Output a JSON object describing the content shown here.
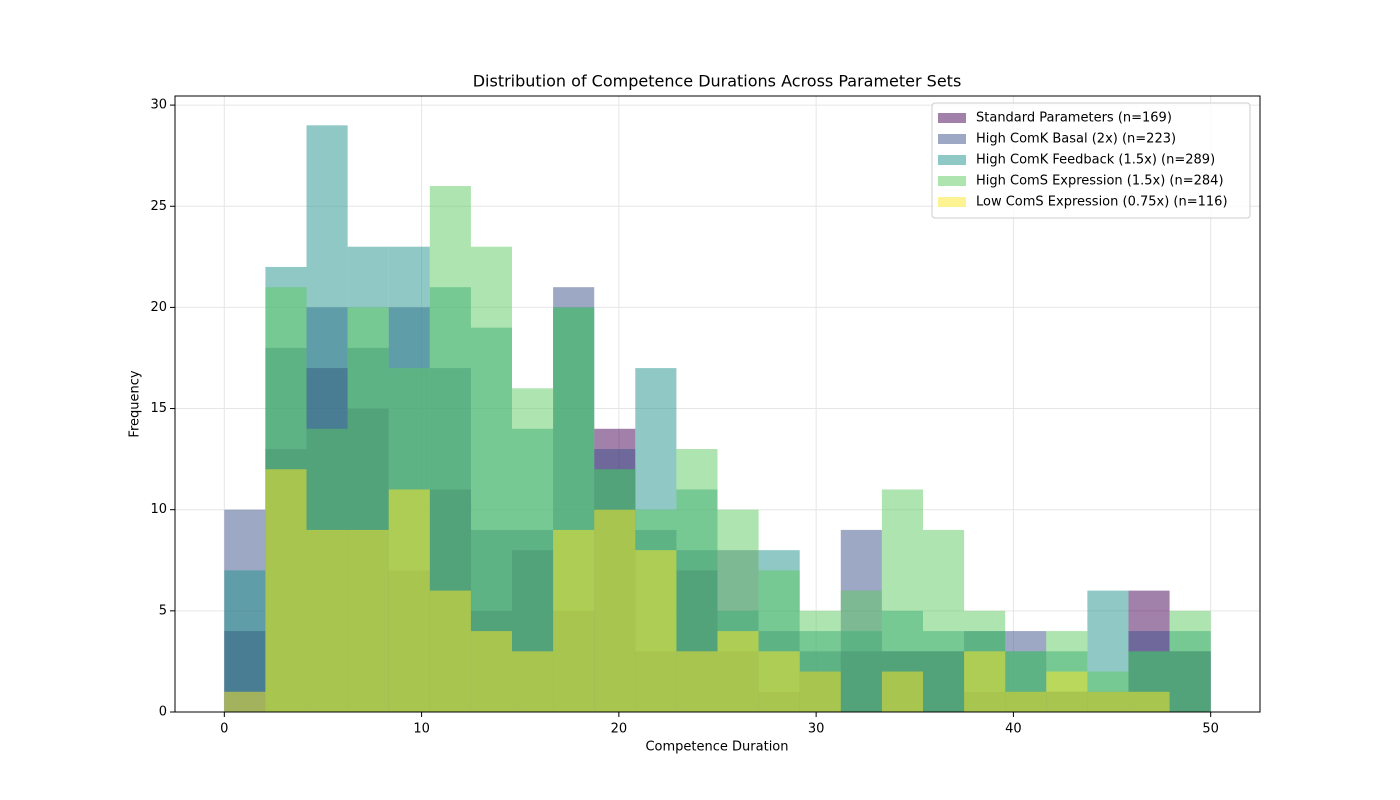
{
  "chart_data": {
    "type": "histogram",
    "title": "Distribution of Competence Durations Across Parameter Sets",
    "xlabel": "Competence Duration",
    "ylabel": "Frequency",
    "bins": [
      0,
      2.083,
      4.167,
      6.25,
      8.333,
      10.417,
      12.5,
      14.583,
      16.667,
      18.75,
      20.833,
      22.917,
      25,
      27.083,
      29.167,
      31.25,
      33.333,
      35.417,
      37.5,
      39.583,
      41.667,
      43.75,
      45.833,
      47.917,
      50
    ],
    "series": [
      {
        "name": "Standard Parameters (n=169)",
        "color": "#440154",
        "values": [
          4,
          13,
          17,
          15,
          7,
          11,
          5,
          8,
          5,
          14,
          3,
          7,
          3,
          1,
          2,
          3,
          3,
          3,
          1,
          1,
          1,
          1,
          6,
          3
        ]
      },
      {
        "name": "High ComK Basal (2x) (n=223)",
        "color": "#3b528b",
        "values": [
          10,
          18,
          20,
          18,
          20,
          17,
          9,
          9,
          21,
          13,
          9,
          8,
          8,
          4,
          3,
          9,
          3,
          3,
          4,
          4,
          1,
          1,
          4,
          3
        ]
      },
      {
        "name": "High ComK Feedback (1.5x) (n=289)",
        "color": "#21918c",
        "values": [
          7,
          22,
          29,
          23,
          23,
          21,
          19,
          14,
          20,
          12,
          17,
          11,
          5,
          8,
          4,
          4,
          5,
          4,
          4,
          3,
          3,
          6,
          3,
          4
        ]
      },
      {
        "name": "High ComS Expression (1.5x) (n=284)",
        "color": "#5ec962",
        "values": [
          0,
          21,
          14,
          20,
          17,
          26,
          23,
          16,
          20,
          12,
          10,
          13,
          10,
          7,
          5,
          6,
          11,
          9,
          5,
          3,
          4,
          2,
          3,
          5
        ]
      },
      {
        "name": "Low ComS Expression (0.75x) (n=116)",
        "color": "#fde725",
        "values": [
          1,
          12,
          9,
          9,
          11,
          6,
          4,
          3,
          9,
          10,
          8,
          3,
          4,
          3,
          2,
          0,
          2,
          0,
          3,
          1,
          2,
          1,
          1,
          0
        ]
      }
    ],
    "alpha": 0.5,
    "xlim": [
      -2.5,
      52.5
    ],
    "xticks": [
      0,
      10,
      20,
      30,
      40,
      50
    ],
    "ylim": [
      0,
      30.45
    ],
    "yticks": [
      0,
      5,
      10,
      15,
      20,
      25,
      30
    ],
    "grid": true,
    "legend": "upper right"
  }
}
